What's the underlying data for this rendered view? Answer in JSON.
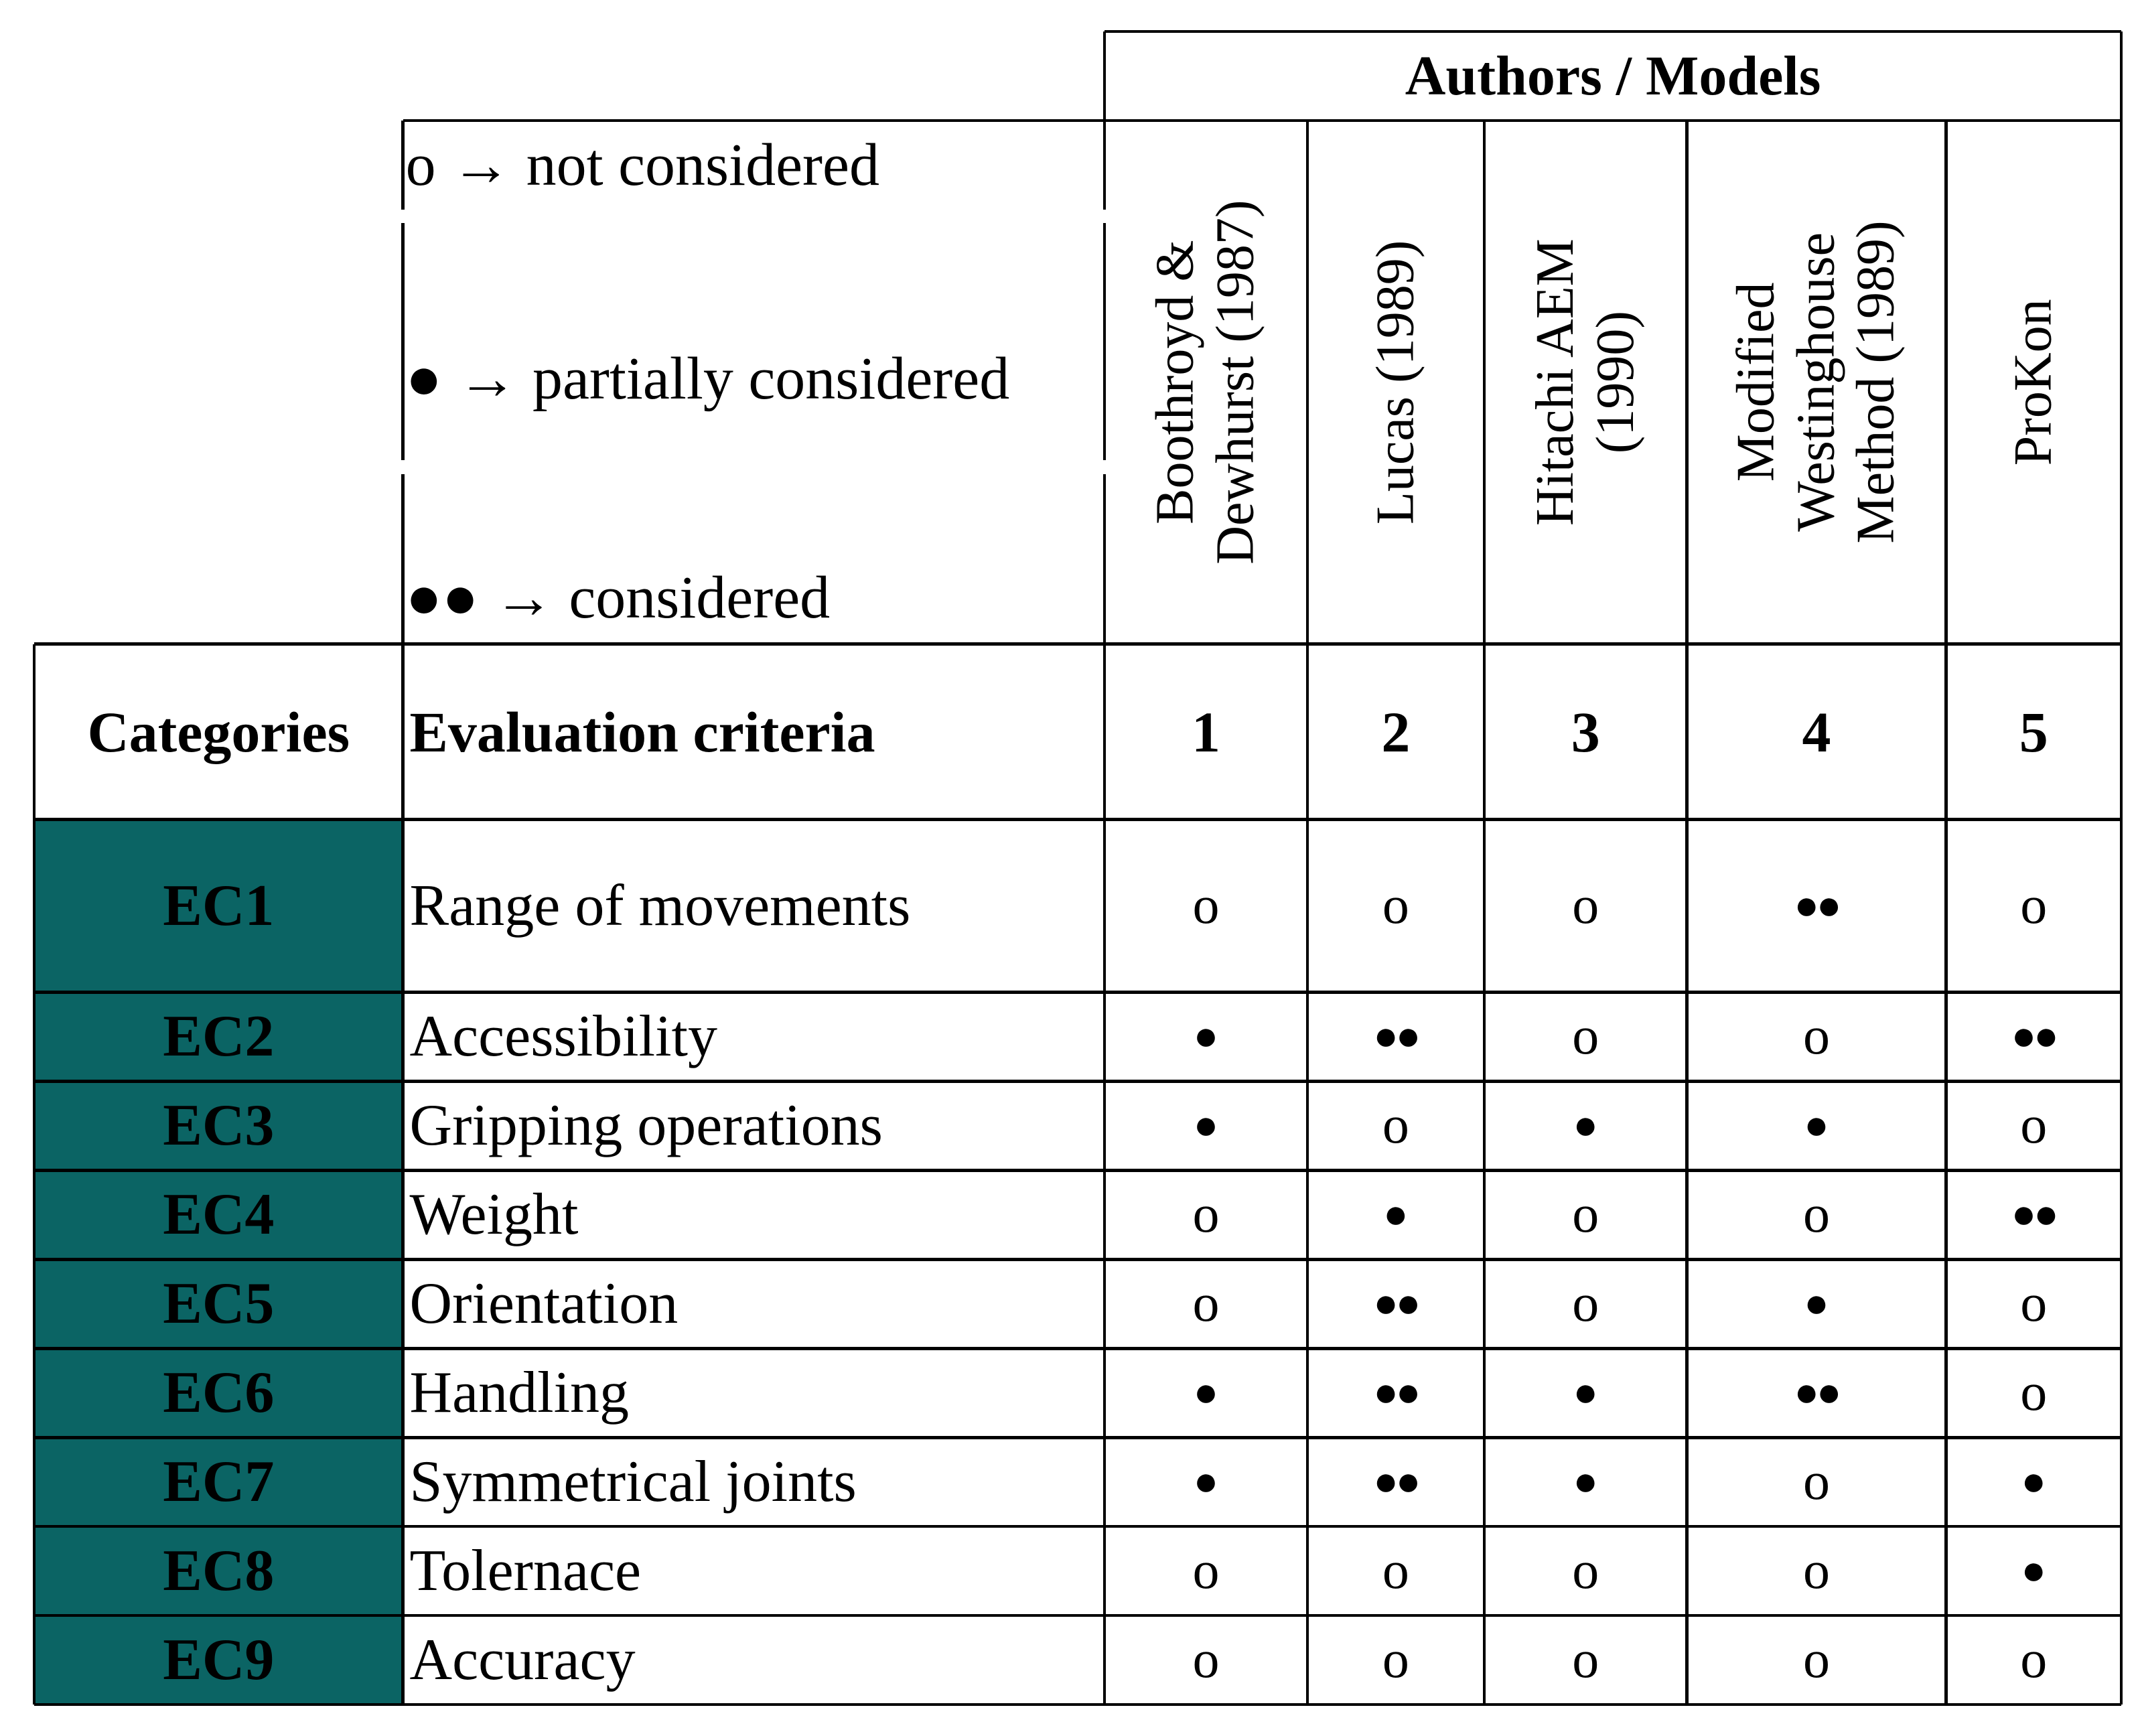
{
  "table": {
    "group_header": "Authors / Models",
    "legend": [
      {
        "symbol": "o",
        "text": "o → not considered"
      },
      {
        "symbol": "●",
        "text": "● → partially considered"
      },
      {
        "symbol": "●●",
        "text": "●● → considered"
      }
    ],
    "models": [
      {
        "lines": [
          "Boothroyd &",
          "Dewhurst (1987)"
        ],
        "number": "1"
      },
      {
        "lines": [
          "Lucas (1989)"
        ],
        "number": "2"
      },
      {
        "lines": [
          "Hitachi AEM",
          "(1990)"
        ],
        "number": "3"
      },
      {
        "lines": [
          "Modified",
          "Westinghouse",
          "Method (1989)"
        ],
        "number": "4"
      },
      {
        "lines": [
          "ProKon"
        ],
        "number": "5"
      }
    ],
    "col_headers": {
      "categories": "Categories",
      "criteria": "Evaluation criteria"
    },
    "rows": [
      {
        "category": "EC1",
        "criterion": "Range of movements",
        "values": [
          "o",
          "o",
          "o",
          "●●",
          "o"
        ]
      },
      {
        "category": "EC2",
        "criterion": "Accessibility",
        "values": [
          "●",
          "●●",
          "o",
          "o",
          "●●"
        ]
      },
      {
        "category": "EC3",
        "criterion": "Gripping operations",
        "values": [
          "●",
          "o",
          "●",
          "●",
          "o"
        ]
      },
      {
        "category": "EC4",
        "criterion": "Weight",
        "values": [
          "o",
          "●",
          "o",
          "o",
          "●●"
        ]
      },
      {
        "category": "EC5",
        "criterion": "Orientation",
        "values": [
          "o",
          "●●",
          "o",
          "●",
          "o"
        ]
      },
      {
        "category": "EC6",
        "criterion": "Handling",
        "values": [
          "●",
          "●●",
          "●",
          "●●",
          "o"
        ]
      },
      {
        "category": "EC7",
        "criterion": "Symmetrical joints",
        "values": [
          "●",
          "●●",
          "●",
          "o",
          "●"
        ]
      },
      {
        "category": "EC8",
        "criterion": "Tolernace",
        "values": [
          "o",
          "o",
          "o",
          "o",
          "●"
        ]
      },
      {
        "category": "EC9",
        "criterion": "Accuracy",
        "values": [
          "o",
          "o",
          "o",
          "o",
          "o"
        ]
      }
    ],
    "colors": {
      "category_fill": "#0b6464",
      "lines": "#000000"
    }
  }
}
